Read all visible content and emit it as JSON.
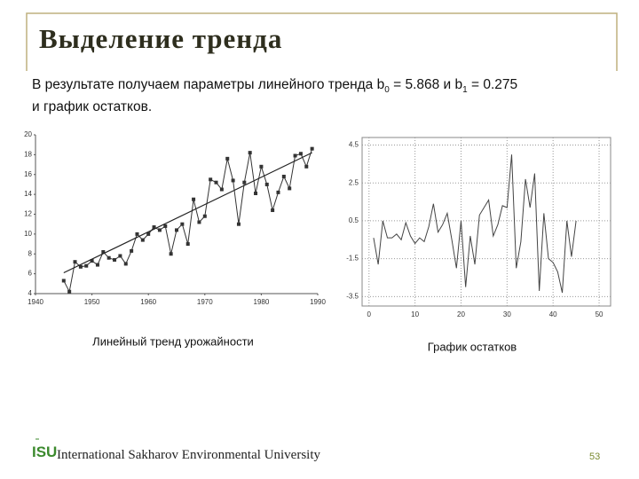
{
  "slide": {
    "title": "Выделение тренда",
    "text_parts": [
      "В результате получаем параметры линейного тренда b",
      "0",
      " = 5.868 и b",
      "1",
      " = 0.275"
    ],
    "text_line2": "и график остатков.",
    "logo": "ISU",
    "footer": "International Sakharov Environmental University",
    "page": "53"
  },
  "chart_data": [
    {
      "type": "line",
      "title": "Линейный тренд урожайности",
      "color": "#333333",
      "markers": true,
      "grid": false,
      "x": [
        1945,
        1946,
        1947,
        1948,
        1949,
        1950,
        1951,
        1952,
        1953,
        1954,
        1955,
        1956,
        1957,
        1958,
        1959,
        1960,
        1961,
        1962,
        1963,
        1964,
        1965,
        1966,
        1967,
        1968,
        1969,
        1970,
        1971,
        1972,
        1973,
        1974,
        1975,
        1976,
        1977,
        1978,
        1979,
        1980,
        1981,
        1982,
        1983,
        1984,
        1985,
        1986,
        1987,
        1988,
        1989
      ],
      "values": [
        5.3,
        4.2,
        7.2,
        6.7,
        6.8,
        7.3,
        6.9,
        8.2,
        7.6,
        7.4,
        7.8,
        7.0,
        8.3,
        10.0,
        9.4,
        10.0,
        10.7,
        10.4,
        10.8,
        8.0,
        10.4,
        11.0,
        9.0,
        13.5,
        11.2,
        11.8,
        15.5,
        15.2,
        14.5,
        17.6,
        15.4,
        11.0,
        15.2,
        18.2,
        14.1,
        16.8,
        15.0,
        12.4,
        14.2,
        15.8,
        14.6,
        17.9,
        18.1,
        16.8,
        18.6
      ],
      "trend_x": [
        1945,
        1989
      ],
      "trend_values": [
        6.1,
        18.2
      ],
      "xlim": [
        1940,
        1990
      ],
      "xticks": [
        1940,
        1950,
        1960,
        1970,
        1980,
        1990
      ],
      "ylim": [
        4,
        20
      ],
      "yticks": [
        4,
        6,
        8,
        10,
        12,
        14,
        16,
        18,
        20
      ]
    },
    {
      "type": "line",
      "title": "График остатков",
      "color": "#444444",
      "markers": false,
      "grid": true,
      "x": [
        1,
        2,
        3,
        4,
        5,
        6,
        7,
        8,
        9,
        10,
        11,
        12,
        13,
        14,
        15,
        16,
        17,
        18,
        19,
        20,
        21,
        22,
        23,
        24,
        25,
        26,
        27,
        28,
        29,
        30,
        31,
        32,
        33,
        34,
        35,
        36,
        37,
        38,
        39,
        40,
        41,
        42,
        43,
        44,
        45
      ],
      "values": [
        -0.4,
        -1.8,
        0.5,
        -0.4,
        -0.4,
        -0.2,
        -0.5,
        0.4,
        -0.3,
        -0.7,
        -0.4,
        -0.6,
        0.2,
        1.4,
        -0.1,
        0.3,
        0.9,
        -0.5,
        -2.0,
        0.5,
        -3.0,
        -0.3,
        -1.8,
        0.8,
        1.2,
        1.6,
        -0.3,
        0.3,
        1.3,
        1.2,
        4.0,
        -2.0,
        -0.6,
        2.7,
        1.2,
        3.0,
        -3.2,
        0.9,
        -1.5,
        -1.7,
        -2.2,
        -3.3,
        0.5,
        -1.4,
        0.5
      ],
      "xlim": [
        -1.5,
        52.5
      ],
      "xticks": [
        0,
        10,
        20,
        30,
        40,
        50
      ],
      "ylim": [
        -4,
        4.9
      ],
      "yticks": [
        4.5,
        2.5,
        0.5,
        -1.5,
        -3.5
      ]
    }
  ]
}
